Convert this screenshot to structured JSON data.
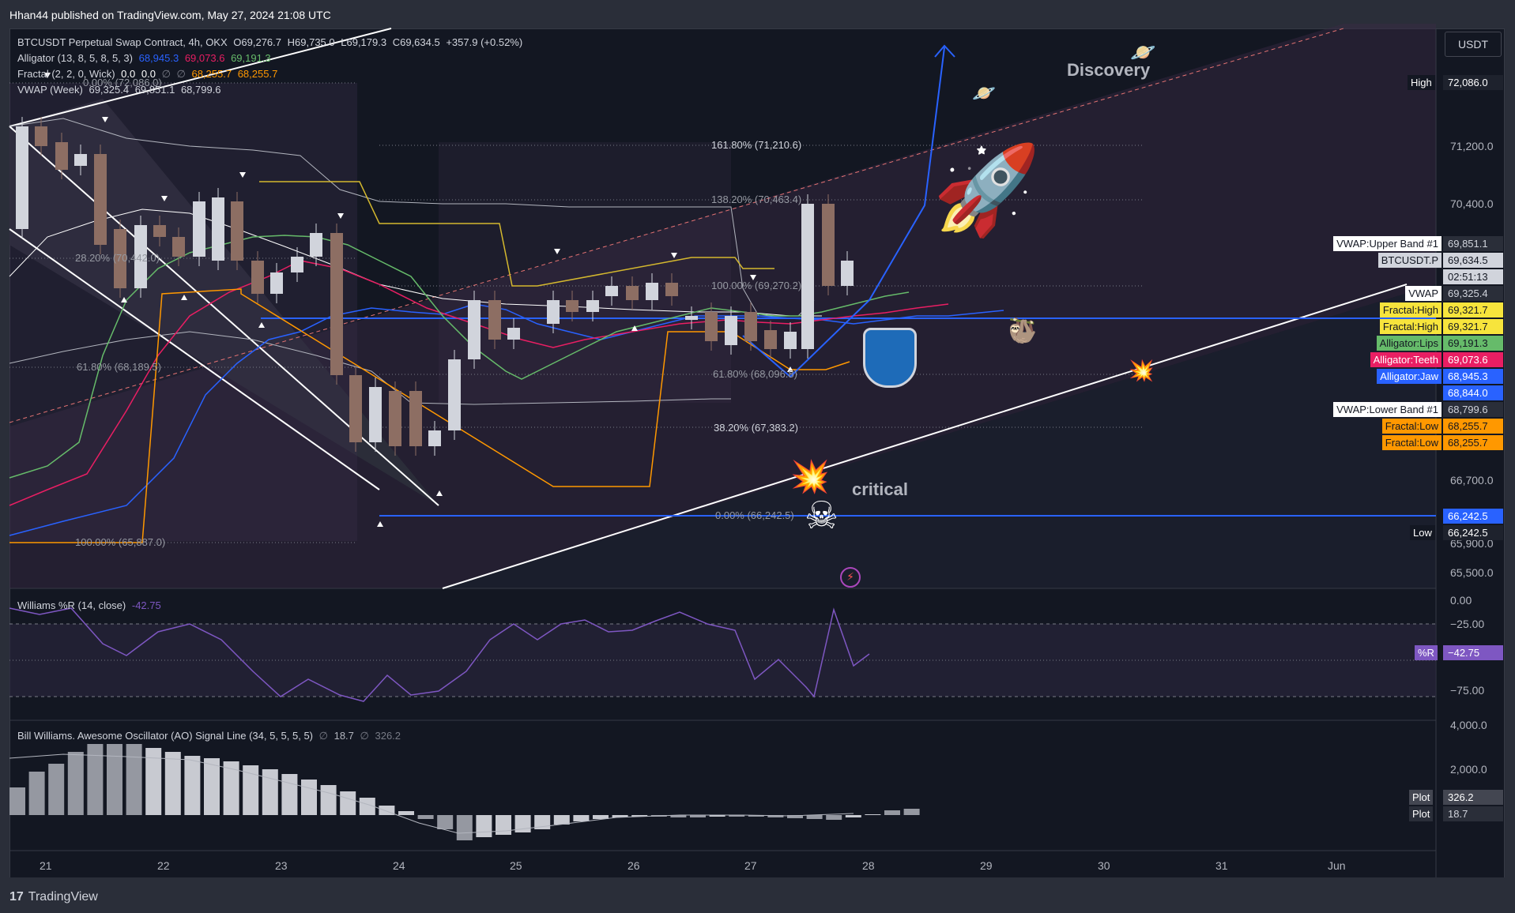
{
  "header": {
    "published": "Hhan44 published on TradingView.com, May 27, 2024 21:08 UTC"
  },
  "footer": {
    "brand": "TradingView",
    "brand_mark": "17"
  },
  "legend": {
    "symbol": "BTCUSDT Perpetual Swap Contract, 4h, OKX",
    "ohlc": [
      "O69,276.7",
      "H69,735.0",
      "L69,179.3",
      "C69,634.5",
      "+357.9 (+0.52%)"
    ],
    "alligator": {
      "label": "Alligator (13, 8, 5, 8, 5, 3)",
      "values": [
        "68,945.3",
        "69,073.6",
        "69,191.3"
      ]
    },
    "fractal": {
      "label": "Fractal (2, 2, 0, Wick)",
      "values": [
        "0.0",
        "0.0",
        "∅",
        "∅",
        "68,255.7",
        "68,255.7"
      ]
    },
    "vwap": {
      "label": "VWAP (Week)",
      "values": [
        "69,325.4",
        "69,851.1",
        "68,799.6"
      ]
    }
  },
  "currency_button": "USDT",
  "price_axis": {
    "ticks": [
      "71,200.0",
      "70,400.0",
      "66,700.0",
      "65,900.0",
      "65,500.0"
    ],
    "high": {
      "label": "High",
      "value": "72,086.0"
    },
    "low": {
      "label": "Low",
      "value": "66,242.5"
    },
    "tags": [
      {
        "label": "VWAP:Upper Band #1",
        "value": "69,851.1",
        "color": "#d1d4dc",
        "bg": "#2a2e39",
        "tag_bg": "#ffffff",
        "tag_fg": "#131722"
      },
      {
        "label": "BTCUSDT.P",
        "value": "69,634.5",
        "color": "#131722",
        "bg": "#d1d4dc",
        "tag_bg": "#d1d4dc",
        "tag_fg": "#131722"
      },
      {
        "label": "",
        "value": "02:51:13",
        "color": "#131722",
        "bg": "#d1d4dc",
        "tag_bg": "",
        "tag_fg": ""
      },
      {
        "label": "VWAP",
        "value": "69,325.4",
        "color": "#d1d4dc",
        "bg": "#2a2e39",
        "tag_bg": "#ffffff",
        "tag_fg": "#131722"
      },
      {
        "label": "Fractal:High",
        "value": "69,321.7",
        "color": "#131722",
        "bg": "#f7e43c",
        "tag_bg": "#f7e43c",
        "tag_fg": "#131722"
      },
      {
        "label": "Fractal:High",
        "value": "69,321.7",
        "color": "#131722",
        "bg": "#f7e43c",
        "tag_bg": "#f7e43c",
        "tag_fg": "#131722"
      },
      {
        "label": "Alligator:Lips",
        "value": "69,191.3",
        "color": "#131722",
        "bg": "#66bb6a",
        "tag_bg": "#66bb6a",
        "tag_fg": "#131722"
      },
      {
        "label": "Alligator:Teeth",
        "value": "69,073.6",
        "color": "#ffffff",
        "bg": "#e91e63",
        "tag_bg": "#e91e63",
        "tag_fg": "#ffffff"
      },
      {
        "label": "Alligator:Jaw",
        "value": "68,945.3",
        "color": "#ffffff",
        "bg": "#2962ff",
        "tag_bg": "#2962ff",
        "tag_fg": "#ffffff"
      },
      {
        "label": "",
        "value": "68,844.0",
        "color": "#ffffff",
        "bg": "#2962ff",
        "tag_bg": "",
        "tag_fg": ""
      },
      {
        "label": "VWAP:Lower Band #1",
        "value": "68,799.6",
        "color": "#d1d4dc",
        "bg": "#2a2e39",
        "tag_bg": "#ffffff",
        "tag_fg": "#131722"
      },
      {
        "label": "Fractal:Low",
        "value": "68,255.7",
        "color": "#131722",
        "bg": "#ff9800",
        "tag_bg": "#ff9800",
        "tag_fg": "#131722"
      },
      {
        "label": "Fractal:Low",
        "value": "68,255.7",
        "color": "#131722",
        "bg": "#ff9800",
        "tag_bg": "#ff9800",
        "tag_fg": "#131722"
      }
    ],
    "low_blue_value": "66,242.5"
  },
  "fib_levels": [
    {
      "label": "0.00% (72,086.0)"
    },
    {
      "label": "28.20% (70,442.0)"
    },
    {
      "label": "61.80% (68,189.5)"
    },
    {
      "label": "100.00% (65,887.0)"
    },
    {
      "label": "161.80% (71,210.6)"
    },
    {
      "label": "138.20% (70,463.4)"
    },
    {
      "label": "100.00% (69,270.2)"
    },
    {
      "label": "61.80% (68,096.8)"
    },
    {
      "label": "38.20% (67,383.2)"
    },
    {
      "label": "0.00% (66,242.5)"
    }
  ],
  "annotations": {
    "discovery": "Discovery",
    "critical": "critical"
  },
  "williams": {
    "label": "Williams %R (14, close)",
    "value": "-42.75",
    "ticks": [
      "0.00",
      "−25.00",
      "−75.00"
    ],
    "tag": "%R",
    "tag_value": "−42.75"
  },
  "ao": {
    "label": "Bill Williams. Awesome Oscillator (AO) Signal Line (34, 5, 5, 5, 5)",
    "values": [
      "∅",
      "18.7",
      "∅",
      "326.2"
    ],
    "ticks": [
      "4,000.0",
      "2,000.0"
    ],
    "tags": [
      {
        "label": "Plot",
        "value": "326.2"
      },
      {
        "label": "Plot",
        "value": "18.7"
      }
    ]
  },
  "x_axis": [
    "21",
    "22",
    "23",
    "24",
    "25",
    "26",
    "27",
    "28",
    "29",
    "30",
    "31",
    "Jun"
  ],
  "colors": {
    "bg": "#131722",
    "up": "#d1d4dc",
    "down": "#8d6e63",
    "jaw": "#2962ff",
    "teeth": "#e91e63",
    "lips": "#66bb6a",
    "fractal_high": "#f7e43c",
    "fractal_low": "#ff9800",
    "wr": "#7e57c2"
  }
}
